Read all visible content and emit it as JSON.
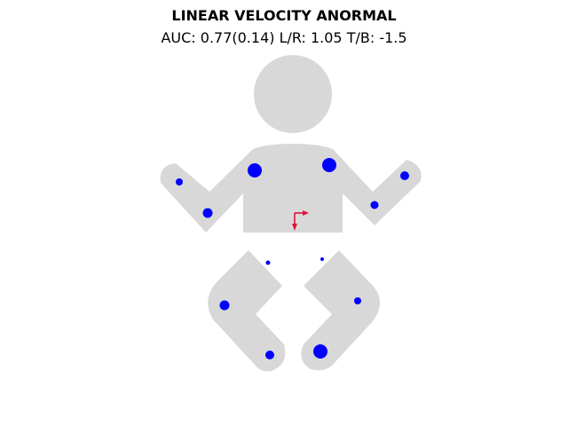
{
  "chart_data": {
    "type": "scatter",
    "title": "LINEAR VELOCITY ANORMAL",
    "subtitle": "AUC: 0.77(0.14) L/R: 1.05 T/B: -1.5",
    "auc": 0.77,
    "auc_sd": 0.14,
    "lr_ratio": 1.05,
    "tb_ratio": -1.5,
    "body_color": "#d8d8d8",
    "marker_color": "#0000ff",
    "arrow_color": "#dc143c",
    "grid": false,
    "legend": "none",
    "markers": [
      {
        "part": "left-shoulder",
        "size": 8
      },
      {
        "part": "right-shoulder",
        "size": 8
      },
      {
        "part": "left-elbow",
        "size": 5.5
      },
      {
        "part": "left-wrist",
        "size": 4
      },
      {
        "part": "right-elbow",
        "size": 4.5
      },
      {
        "part": "right-wrist",
        "size": 5
      },
      {
        "part": "left-hip",
        "size": 2.5
      },
      {
        "part": "right-hip",
        "size": 2
      },
      {
        "part": "left-knee",
        "size": 5.5
      },
      {
        "part": "right-knee",
        "size": 4
      },
      {
        "part": "left-ankle",
        "size": 5
      },
      {
        "part": "right-ankle",
        "size": 8
      }
    ]
  }
}
